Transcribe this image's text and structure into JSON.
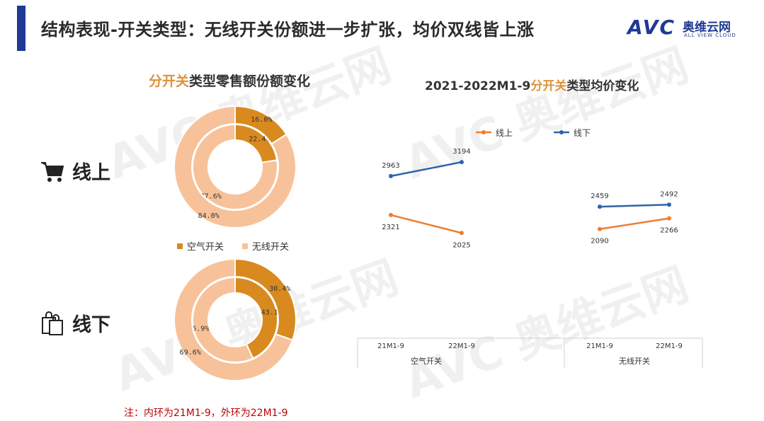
{
  "header": {
    "title": "结构表现-开关类型：无线开关份额进一步扩张，均价双线皆上涨",
    "logo_avc": "AVC",
    "logo_cn": "奥维云网",
    "logo_en": "ALL VIEW CLOUD"
  },
  "donut_title": {
    "highlight": "分开关",
    "rest": "类型零售额份额变化"
  },
  "line_title": {
    "prefix": "2021-2022M1-9",
    "highlight": "分开关",
    "rest": "类型均价变化"
  },
  "channels": {
    "online": "线上",
    "offline": "线下"
  },
  "note": "注：内环为21M1-9，外环为22M1-9",
  "colors": {
    "air": "#d98a1f",
    "wireless": "#f7c29a",
    "online_line": "#ed7d31",
    "offline_line": "#2e64a8",
    "accent": "#1f3a93",
    "note": "#c00000"
  },
  "chart_data": [
    {
      "type": "pie",
      "variant": "nested-donut",
      "channel": "线上",
      "legend": [
        "空气开关",
        "无线开关"
      ],
      "inner_ring": {
        "period": "21M1-9",
        "values": [
          22.4,
          77.6
        ],
        "labels": [
          "22.4%",
          "77.6%"
        ]
      },
      "outer_ring": {
        "period": "22M1-9",
        "values": [
          16.0,
          84.0
        ],
        "labels": [
          "16.0%",
          "84.0%"
        ]
      }
    },
    {
      "type": "pie",
      "variant": "nested-donut",
      "channel": "线下",
      "legend": [
        "空气开关",
        "无线开关"
      ],
      "inner_ring": {
        "period": "21M1-9",
        "values": [
          43.1,
          56.9
        ],
        "labels": [
          "43.1%",
          "56.9%"
        ]
      },
      "outer_ring": {
        "period": "22M1-9",
        "values": [
          30.4,
          69.6
        ],
        "labels": [
          "30.4%",
          "69.6%"
        ]
      }
    },
    {
      "type": "line",
      "groups": [
        "空气开关",
        "无线开关"
      ],
      "categories": [
        "21M1-9",
        "22M1-9"
      ],
      "series": [
        {
          "name": "线上",
          "segments": [
            [
              2321,
              2025
            ],
            [
              2090,
              2266
            ]
          ]
        },
        {
          "name": "线下",
          "segments": [
            [
              2963,
              3194
            ],
            [
              2459,
              2492
            ]
          ]
        }
      ],
      "legend_position": "top"
    }
  ]
}
